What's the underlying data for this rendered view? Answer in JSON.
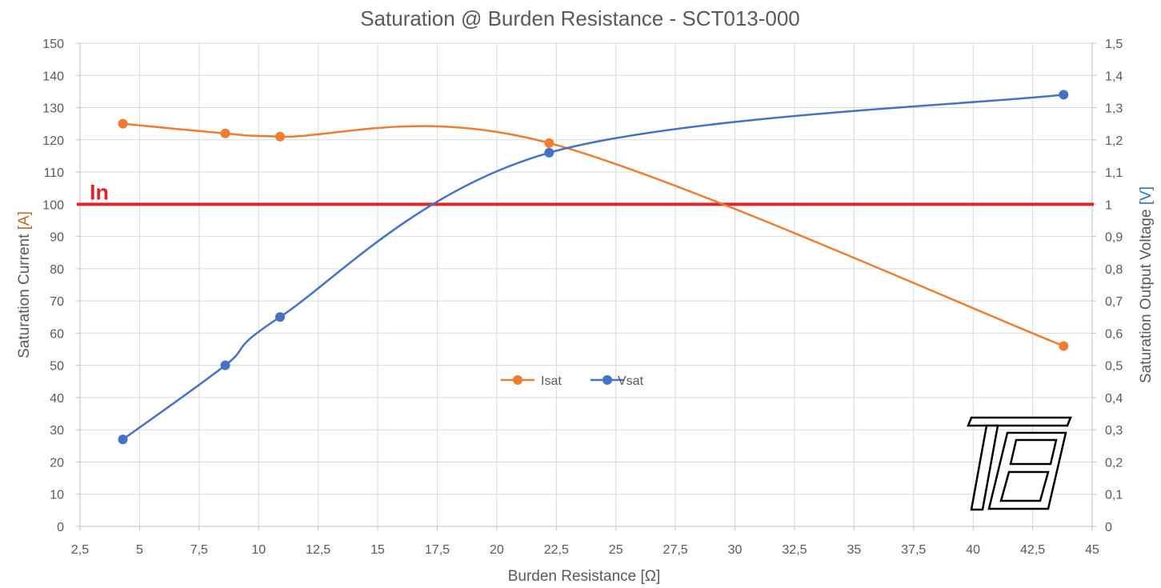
{
  "chart_data": {
    "type": "line",
    "title": "Saturation @ Burden Resistance   -  SCT013-000",
    "xlabel": "Burden Resistance [Ω]",
    "ylabel_left": {
      "text": "Saturation Current ",
      "unit": "[A]",
      "unit_color": "#c0692a"
    },
    "ylabel_right": {
      "text": "Saturation Output Voltage ",
      "unit": "[V]",
      "unit_color": "#2e75b6"
    },
    "xlim": [
      2.5,
      45
    ],
    "x_ticks": [
      "2,5",
      "5",
      "7,5",
      "10",
      "12,5",
      "15",
      "17,5",
      "20",
      "22,5",
      "25",
      "27,5",
      "30",
      "32,5",
      "35",
      "37,5",
      "40",
      "42,5",
      "45"
    ],
    "ylim_left": [
      0,
      150
    ],
    "y_ticks_left": [
      "0",
      "10",
      "20",
      "30",
      "40",
      "50",
      "60",
      "70",
      "80",
      "90",
      "100",
      "110",
      "120",
      "130",
      "140",
      "150"
    ],
    "ylim_right": [
      0,
      1.5
    ],
    "y_ticks_right": [
      "0",
      "0,1",
      "0,2",
      "0,3",
      "0,4",
      "0,5",
      "0,6",
      "0,7",
      "0,8",
      "0,9",
      "1",
      "1,1",
      "1,2",
      "1,3",
      "1,4",
      "1,5"
    ],
    "grid": true,
    "legend_position": "center",
    "series": [
      {
        "name": "Isat",
        "axis": "left",
        "color": "#ed7d31",
        "smooth": true,
        "x": [
          4.3,
          8.6,
          10.9,
          22.2,
          43.8
        ],
        "y": [
          125,
          122,
          121,
          119,
          56
        ]
      },
      {
        "name": "Vsat",
        "axis": "right",
        "color": "#4472c4",
        "smooth": true,
        "x": [
          4.3,
          8.6,
          10.9,
          22.2,
          43.8
        ],
        "y": [
          0.27,
          0.5,
          0.65,
          1.16,
          1.34
        ]
      }
    ],
    "reference_line": {
      "label": "In",
      "axis": "left",
      "y": 100,
      "color": "#e0262b"
    }
  },
  "logo": {
    "name": "TB-logo"
  }
}
